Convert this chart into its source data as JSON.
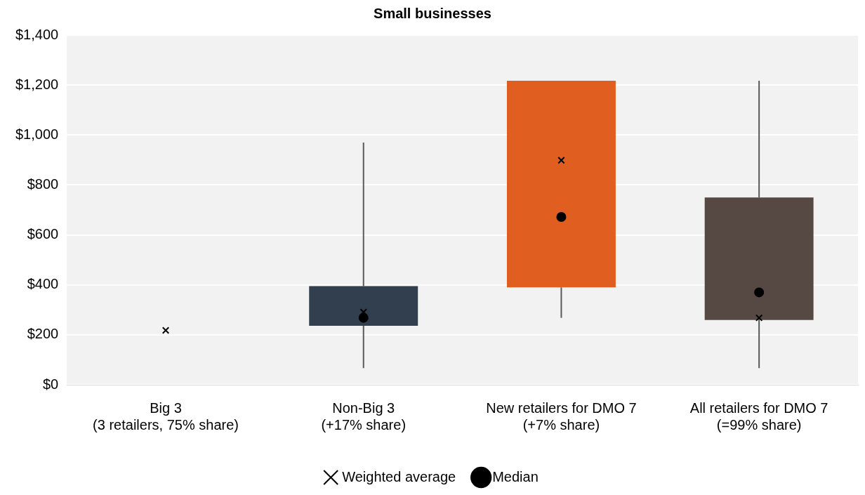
{
  "chart_data": {
    "type": "box",
    "title": "Small businesses",
    "categories": [
      "Big 3\n(3 retailers, 75% share)",
      "Non-Big 3\n(+17% share)",
      "New retailers for DMO 7\n(+7% share)",
      "All retailers for DMO 7\n(=99% share)"
    ],
    "boxes": [
      null,
      {
        "low": 67,
        "q1": 236,
        "q3": 395,
        "high": 970
      },
      {
        "low": 268,
        "q1": 390,
        "q3": 1217,
        "high": 1217
      },
      {
        "low": 67,
        "q1": 259,
        "q3": 750,
        "high": 1217
      }
    ],
    "colors": [
      "#ffffff",
      "#323f4f",
      "#e05e20",
      "#564944"
    ],
    "series": [
      {
        "name": "Weighted average",
        "type": "scatter",
        "marker": "cross",
        "color": "#000000",
        "values": [
          218,
          291,
          899,
          268
        ]
      },
      {
        "name": "Median",
        "type": "scatter",
        "marker": "circle",
        "color": "#000000",
        "values": [
          null,
          268,
          672,
          370
        ]
      }
    ],
    "ylim": [
      0,
      1400
    ],
    "yticks": [
      {
        "value": 0,
        "label": "$0"
      },
      {
        "value": 200,
        "label": "$200"
      },
      {
        "value": 400,
        "label": "$400"
      },
      {
        "value": 600,
        "label": "$600"
      },
      {
        "value": 800,
        "label": "$800"
      },
      {
        "value": 1000,
        "label": "$1,000"
      },
      {
        "value": 1200,
        "label": "$1,200"
      },
      {
        "value": 1400,
        "label": "$1,400"
      }
    ],
    "grid": "y",
    "legend": "bottom"
  }
}
